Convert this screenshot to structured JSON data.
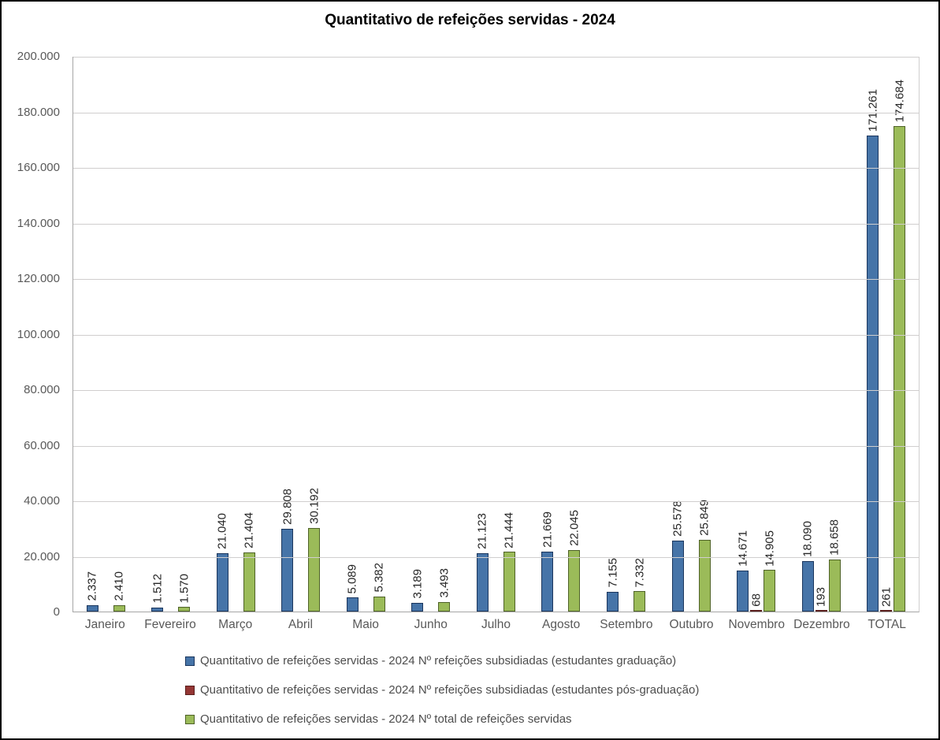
{
  "chart_data": {
    "type": "bar",
    "title": "Quantitativo de refeições servidas - 2024",
    "categories": [
      "Janeiro",
      "Fevereiro",
      "Março",
      "Abril",
      "Maio",
      "Junho",
      "Julho",
      "Agosto",
      "Setembro",
      "Outubro",
      "Novembro",
      "Dezembro",
      "TOTAL"
    ],
    "series": [
      {
        "name": "Quantitativo de refeições servidas - 2024 Nº refeições subsidiadas (estudantes graduação)",
        "color": "#4674A8",
        "border_color": "#1B365D",
        "values": [
          2337,
          1512,
          21040,
          29808,
          5089,
          3189,
          21123,
          21669,
          7155,
          25578,
          14671,
          18090,
          171261
        ]
      },
      {
        "name": "Quantitativo de refeições servidas - 2024 Nº refeições subsidiadas (estudantes pós-graduação)",
        "color": "#943634",
        "border_color": "#5A1F1D",
        "values": [
          0,
          0,
          0,
          0,
          0,
          0,
          0,
          0,
          0,
          0,
          68,
          193,
          261
        ]
      },
      {
        "name": "Quantitativo de refeições servidas - 2024 Nº total de refeições servidas",
        "color": "#9BBB59",
        "border_color": "#4F6228",
        "values": [
          2410,
          1570,
          21404,
          30192,
          5382,
          3493,
          21444,
          22045,
          7332,
          25849,
          14905,
          18658,
          174684
        ]
      }
    ],
    "ylim": [
      0,
      200000
    ],
    "ytick_step": 20000,
    "ytick_labels": [
      "0",
      "20.000",
      "40.000",
      "60.000",
      "80.000",
      "100.000",
      "120.000",
      "140.000",
      "160.000",
      "180.000",
      "200.000"
    ],
    "grid": true,
    "legend_position": "bottom-left",
    "number_format": "thousands-dot",
    "data_label_rotation_deg": 90,
    "data_labels_hidden_when_zero": true
  }
}
